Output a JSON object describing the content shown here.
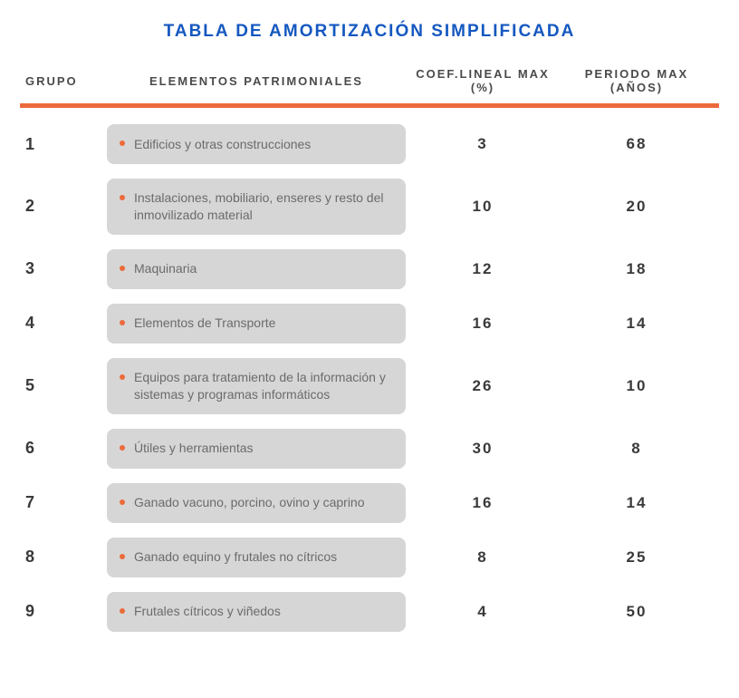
{
  "title": "TABLA DE AMORTIZACIÓN SIMPLIFICADA",
  "accent_color": "#1558c0",
  "divider_color": "#ec6a3b",
  "bullet_color": "#ec6a3b",
  "pill_bg": "#d6d6d6",
  "text_color": "#6b6b6b",
  "header_color": "#4a4a4a",
  "headers": {
    "grupo": "GRUPO",
    "elementos": "ELEMENTOS PATRIMONIALES",
    "coef": "COEF.LINEAL MAX (%)",
    "periodo": "PERIODO MAX (AÑOS)"
  },
  "rows": [
    {
      "grupo": "1",
      "elemento": "Edificios y otras construcciones",
      "coef": "3",
      "periodo": "68"
    },
    {
      "grupo": "2",
      "elemento": "Instalaciones, mobiliario, enseres y resto del inmovilizado material",
      "coef": "10",
      "periodo": "20"
    },
    {
      "grupo": "3",
      "elemento": "Maquinaria",
      "coef": "12",
      "periodo": "18"
    },
    {
      "grupo": "4",
      "elemento": "Elementos de Transporte",
      "coef": "16",
      "periodo": "14"
    },
    {
      "grupo": "5",
      "elemento": "Equipos para tratamiento de la información y sistemas y programas informáticos",
      "coef": "26",
      "periodo": "10"
    },
    {
      "grupo": "6",
      "elemento": "Útiles y herramientas",
      "coef": "30",
      "periodo": "8"
    },
    {
      "grupo": "7",
      "elemento": "Ganado vacuno, porcino, ovino y caprino",
      "coef": "16",
      "periodo": "14"
    },
    {
      "grupo": "8",
      "elemento": "Ganado equino y frutales no cítricos",
      "coef": "8",
      "periodo": "25"
    },
    {
      "grupo": "9",
      "elemento": "Frutales cítricos y viñedos",
      "coef": "4",
      "periodo": "50"
    }
  ]
}
